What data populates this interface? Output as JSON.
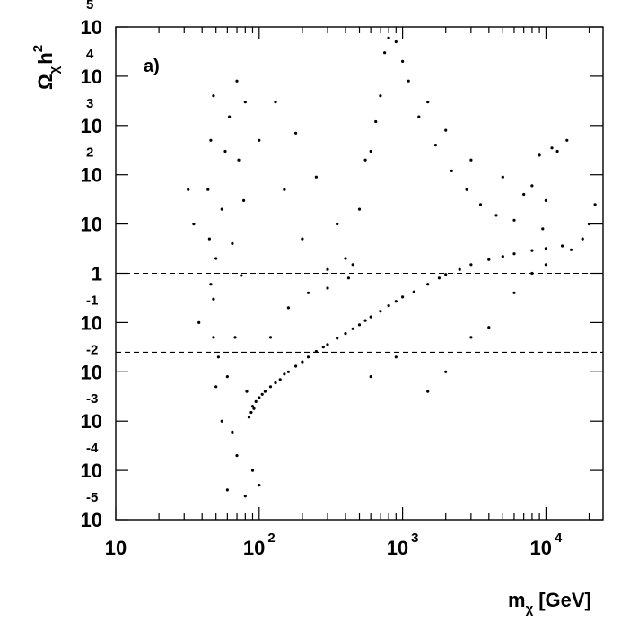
{
  "chart_data": {
    "type": "scatter",
    "panel_label": "a)",
    "xlabel": {
      "base": "m",
      "sub": "χ",
      "unit": "[GeV]"
    },
    "ylabel": {
      "base": "Ω",
      "sub": "χ",
      "mid": "h",
      "sup": "2"
    },
    "x_scale": "log",
    "y_scale": "log",
    "xlim": [
      10,
      25000
    ],
    "ylim": [
      1e-05,
      100000
    ],
    "x_ticks": [
      {
        "value": 10,
        "base": "10",
        "exp": ""
      },
      {
        "value": 100,
        "base": "10",
        "exp": "2"
      },
      {
        "value": 1000,
        "base": "10",
        "exp": "3"
      },
      {
        "value": 10000,
        "base": "10",
        "exp": "4"
      }
    ],
    "y_ticks": [
      {
        "value": 100000,
        "base": "10",
        "exp": "5"
      },
      {
        "value": 10000,
        "base": "10",
        "exp": "4"
      },
      {
        "value": 1000,
        "base": "10",
        "exp": "3"
      },
      {
        "value": 100,
        "base": "10",
        "exp": "2"
      },
      {
        "value": 10,
        "base": "10",
        "exp": ""
      },
      {
        "value": 1,
        "base": "1",
        "exp": ""
      },
      {
        "value": 0.1,
        "base": "10",
        "exp": "-1"
      },
      {
        "value": 0.01,
        "base": "10",
        "exp": "-2"
      },
      {
        "value": 0.001,
        "base": "10",
        "exp": "-3"
      },
      {
        "value": 0.0001,
        "base": "10",
        "exp": "-4"
      },
      {
        "value": 1e-05,
        "base": "10",
        "exp": "-5"
      }
    ],
    "reference_lines": [
      {
        "axis": "y",
        "value": 1,
        "style": "dashed"
      },
      {
        "axis": "y",
        "value": 0.025,
        "style": "dashed"
      }
    ],
    "grid": false,
    "legend": "none",
    "series": [
      {
        "marker": "dot",
        "color": "#000000",
        "points": [
          [
            48,
            0.3
          ],
          [
            50,
            2
          ],
          [
            52,
            0.02
          ],
          [
            55,
            20
          ],
          [
            58,
            300
          ],
          [
            60,
            0.008
          ],
          [
            62,
            1500
          ],
          [
            65,
            4
          ],
          [
            68,
            0.05
          ],
          [
            70,
            8000
          ],
          [
            72,
            200
          ],
          [
            75,
            0.9
          ],
          [
            78,
            30
          ],
          [
            80,
            3000
          ],
          [
            82,
            0.004
          ],
          [
            85,
            0.0012
          ],
          [
            88,
            0.0015
          ],
          [
            90,
            0.002
          ],
          [
            92,
            0.0018
          ],
          [
            95,
            0.0025
          ],
          [
            100,
            0.003
          ],
          [
            105,
            0.0035
          ],
          [
            110,
            0.004
          ],
          [
            120,
            0.005
          ],
          [
            130,
            0.006
          ],
          [
            140,
            0.007
          ],
          [
            150,
            0.009
          ],
          [
            160,
            0.01
          ],
          [
            180,
            0.013
          ],
          [
            200,
            0.016
          ],
          [
            220,
            0.02
          ],
          [
            250,
            0.026
          ],
          [
            280,
            0.032
          ],
          [
            300,
            0.036
          ],
          [
            350,
            0.048
          ],
          [
            400,
            0.06
          ],
          [
            450,
            0.075
          ],
          [
            500,
            0.09
          ],
          [
            550,
            0.11
          ],
          [
            600,
            0.13
          ],
          [
            700,
            0.17
          ],
          [
            800,
            0.22
          ],
          [
            900,
            0.27
          ],
          [
            1000,
            0.33
          ],
          [
            1200,
            0.42
          ],
          [
            1500,
            0.6
          ],
          [
            1800,
            0.8
          ],
          [
            2000,
            0.95
          ],
          [
            2500,
            1.2
          ],
          [
            3000,
            1.5
          ],
          [
            4000,
            1.9
          ],
          [
            5000,
            2.2
          ],
          [
            6000,
            2.5
          ],
          [
            8000,
            2.9
          ],
          [
            10000,
            3.2
          ],
          [
            13000,
            3.6
          ],
          [
            100,
            500
          ],
          [
            150,
            50
          ],
          [
            200,
            5
          ],
          [
            300,
            0.5
          ],
          [
            400,
            2
          ],
          [
            500,
            20
          ],
          [
            600,
            300
          ],
          [
            700,
            4000
          ],
          [
            800,
            60000
          ],
          [
            1000,
            20000
          ],
          [
            1500,
            3000
          ],
          [
            2000,
            800
          ],
          [
            3000,
            200
          ],
          [
            5000,
            90
          ],
          [
            8000,
            60
          ],
          [
            10000,
            30
          ],
          [
            12000,
            300
          ],
          [
            14000,
            500
          ],
          [
            9000,
            250
          ],
          [
            11000,
            350
          ],
          [
            130,
            3000
          ],
          [
            180,
            700
          ],
          [
            250,
            90
          ],
          [
            350,
            10
          ],
          [
            450,
            1.5
          ],
          [
            550,
            200
          ],
          [
            650,
            1200
          ],
          [
            750,
            30000
          ],
          [
            900,
            50000
          ],
          [
            1100,
            8000
          ],
          [
            1300,
            1500
          ],
          [
            1700,
            400
          ],
          [
            2200,
            120
          ],
          [
            2800,
            50
          ],
          [
            3500,
            25
          ],
          [
            4500,
            15
          ],
          [
            6000,
            12
          ],
          [
            7000,
            40
          ],
          [
            9500,
            8
          ],
          [
            120,
            0.05
          ],
          [
            160,
            0.2
          ],
          [
            220,
            0.4
          ],
          [
            300,
            1.2
          ],
          [
            420,
            0.8
          ],
          [
            90,
            0.0001
          ],
          [
            100,
            5e-05
          ],
          [
            80,
            3e-05
          ],
          [
            70,
            0.0002
          ],
          [
            65,
            0.0006
          ],
          [
            60,
            4e-05
          ],
          [
            55,
            0.001
          ],
          [
            50,
            0.005
          ],
          [
            48,
            0.05
          ],
          [
            46,
            0.6
          ],
          [
            45,
            5
          ],
          [
            44,
            50
          ],
          [
            46,
            500
          ],
          [
            48,
            4000
          ],
          [
            32,
            50
          ],
          [
            35,
            10
          ],
          [
            38,
            0.1
          ],
          [
            600,
            0.008
          ],
          [
            900,
            0.02
          ],
          [
            1500,
            0.004
          ],
          [
            2000,
            0.01
          ],
          [
            3000,
            0.05
          ],
          [
            4000,
            0.08
          ],
          [
            6000,
            0.4
          ],
          [
            8000,
            1
          ],
          [
            10000,
            1.5
          ],
          [
            15000,
            3
          ],
          [
            20000,
            10
          ],
          [
            22000,
            25
          ],
          [
            18000,
            5
          ]
        ]
      }
    ]
  }
}
